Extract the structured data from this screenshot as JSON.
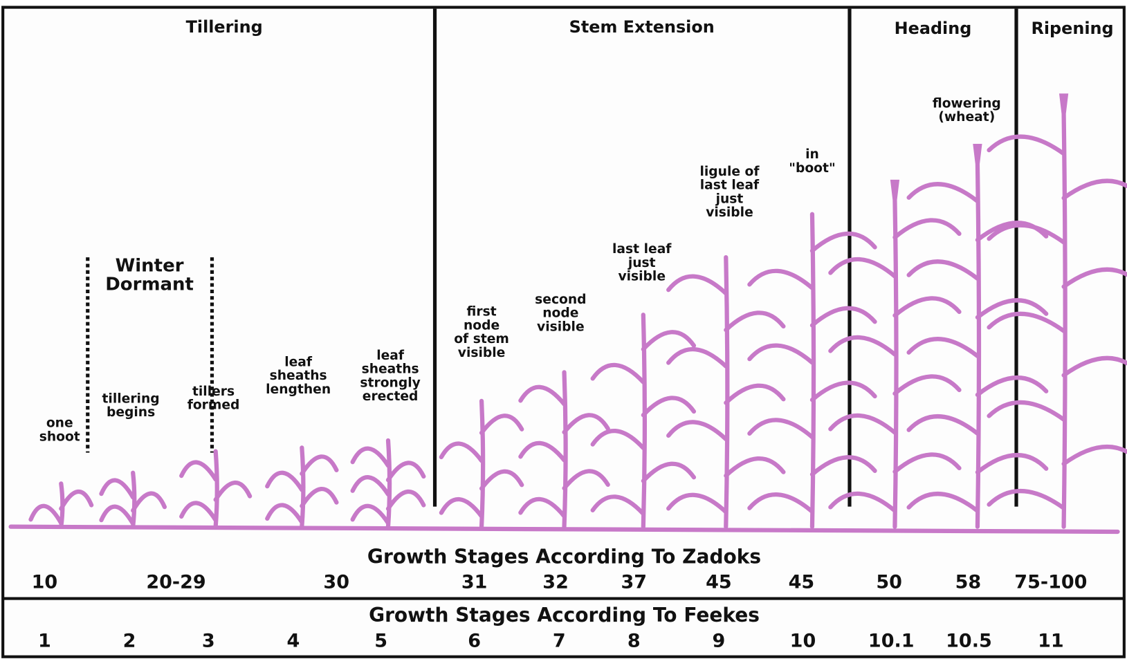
{
  "phases": [
    "Tillering",
    "Stem Extension",
    "Heading",
    "Ripening"
  ],
  "winter_dormant": [
    "Winter",
    "Dormant"
  ],
  "stage_labels": [
    [
      "one",
      "shoot"
    ],
    [
      "tillering",
      "begins"
    ],
    [
      "tillers",
      "formed"
    ],
    [
      "leaf",
      "sheaths",
      "lengthen"
    ],
    [
      "leaf",
      "sheaths",
      "strongly",
      "erected"
    ],
    [
      "first",
      "node",
      "of stem",
      "visible"
    ],
    [
      "second",
      "node",
      "visible"
    ],
    [
      "last leaf",
      "just",
      "visible"
    ],
    [
      "ligule of",
      "last leaf",
      "just",
      "visible"
    ],
    [
      "in",
      "\"boot\""
    ],
    [
      "flowering",
      "(wheat)"
    ]
  ],
  "zadoks": {
    "title": "Growth Stages According To Zadoks",
    "values": [
      "10",
      "20-29",
      "30",
      "31",
      "32",
      "37",
      "45",
      "45",
      "50",
      "58",
      "75-100"
    ]
  },
  "feekes": {
    "title": "Growth Stages According To Feekes",
    "values": [
      "1",
      "2",
      "3",
      "4",
      "5",
      "6",
      "7",
      "8",
      "9",
      "10",
      "10.1",
      "10.5",
      "11"
    ]
  }
}
